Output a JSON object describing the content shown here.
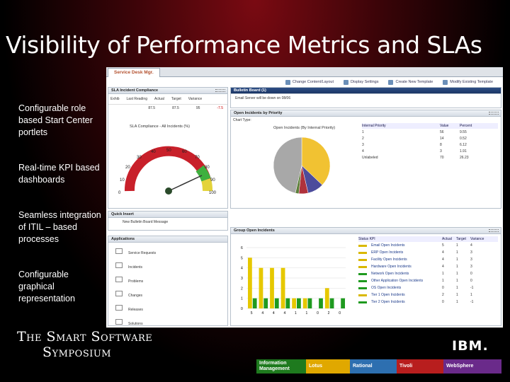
{
  "slide": {
    "title": "Visibility of Performance Metrics and SLAs",
    "bullets": [
      "Configurable role based Start Center portlets",
      "Real-time KPI based dashboards",
      "Seamless integration of ITIL – based processes",
      "Configurable graphical representation"
    ],
    "brand_line1": "The Smart Software",
    "brand_line2": "Symposium",
    "ibm_logo": "IBM.",
    "brands": [
      {
        "label": "Information Management",
        "color": "#1e7a1e"
      },
      {
        "label": "Lotus",
        "color": "#e0a800"
      },
      {
        "label": "Rational",
        "color": "#2d6fb0"
      },
      {
        "label": "Tivoli",
        "color": "#b81e1e"
      },
      {
        "label": "WebSphere",
        "color": "#6a2a8a"
      }
    ]
  },
  "screen": {
    "tab": "Service Desk Mgr.",
    "toolbar": [
      "Change Content/Layout",
      "Display Settings",
      "Create New Template",
      "Modify Existing Template"
    ],
    "sla_portlet": {
      "title": "SLA Incident Compliance",
      "cols": [
        "Exhib",
        "Last Reading",
        "Actual",
        "Target",
        "Variance"
      ],
      "row": [
        "",
        "87.5",
        "87.5",
        "95",
        "-7.5"
      ],
      "gauge_title": "SLA Compliance - All Incidents (%)",
      "gauge_ticks": [
        "0",
        "10",
        "20",
        "30",
        "40",
        "50",
        "60",
        "70",
        "80",
        "90",
        "100"
      ]
    },
    "bulletin": {
      "title": "Bulletin Board (1)",
      "item": "Email Server will be down on 08/06"
    },
    "priority": {
      "title": "Open Incidents by Priority",
      "chart_type_label": "Chart Type:",
      "pie_title": "Open Incidents (By Internal Priority)",
      "cols": [
        "Internal Priority",
        "Value",
        "Percent"
      ],
      "rows": [
        [
          "1",
          "56",
          "9.55"
        ],
        [
          "2",
          "14",
          "0.52"
        ],
        [
          "3",
          "8",
          "6.12"
        ],
        [
          "4",
          "3",
          "1.91"
        ],
        [
          "Unlabeled",
          "70",
          "26.23"
        ]
      ]
    },
    "quick_insert": {
      "title": "Quick Insert",
      "item": "New Bulletin Board Message"
    },
    "applications": {
      "title": "Applications",
      "items": [
        "Service Requests",
        "Incidents",
        "Problems",
        "Changes",
        "Releases",
        "Solutions"
      ]
    },
    "group_incidents": {
      "title": "Group Open Incidents",
      "cols": [
        "Status KPI",
        "Actual",
        "Target",
        "Variance"
      ],
      "rows": [
        [
          "Email Open Incidents",
          "5",
          "1",
          "4"
        ],
        [
          "ERP Open Incidents",
          "4",
          "1",
          "3"
        ],
        [
          "Facility Open Incidents",
          "4",
          "1",
          "3"
        ],
        [
          "Hardware Open Incidents",
          "4",
          "1",
          "3"
        ],
        [
          "Network Open Incidents",
          "1",
          "1",
          "0"
        ],
        [
          "Other Application Open Incidents",
          "1",
          "1",
          "0"
        ],
        [
          "OS Open Incidents",
          "0",
          "1",
          "-1"
        ],
        [
          "Tier 1 Open Incidents",
          "2",
          "1",
          "1"
        ],
        [
          "Tier 2 Open Incidents",
          "0",
          "1",
          "-1"
        ]
      ]
    }
  },
  "chart_data": [
    {
      "type": "bar",
      "title": "",
      "ylim": [
        0,
        6
      ],
      "yticks": [
        "0",
        "1",
        "2",
        "3",
        "4",
        "5",
        "6"
      ],
      "categories": [
        "Email",
        "ERP",
        "Facility",
        "Hardware",
        "Network",
        "Other App",
        "OS",
        "Tier 1",
        "Tier 2"
      ],
      "series": [
        {
          "values": [
            5,
            4,
            4,
            4,
            1,
            1,
            0,
            2,
            0
          ],
          "color": "#e6c800"
        },
        {
          "values": [
            1,
            1,
            1,
            1,
            1,
            1,
            1,
            1,
            1
          ],
          "color": "#1f9a1f"
        }
      ]
    },
    {
      "type": "pie",
      "title": "Open Incidents (By Internal Priority)",
      "categories": [
        "1",
        "2",
        "3",
        "4",
        "Unlabeled"
      ],
      "values": [
        56,
        14,
        8,
        3,
        70
      ],
      "colors": [
        "#f1c232",
        "#4c4c9c",
        "#b0323c",
        "#5d7f3a",
        "#a8a8a8"
      ]
    }
  ]
}
